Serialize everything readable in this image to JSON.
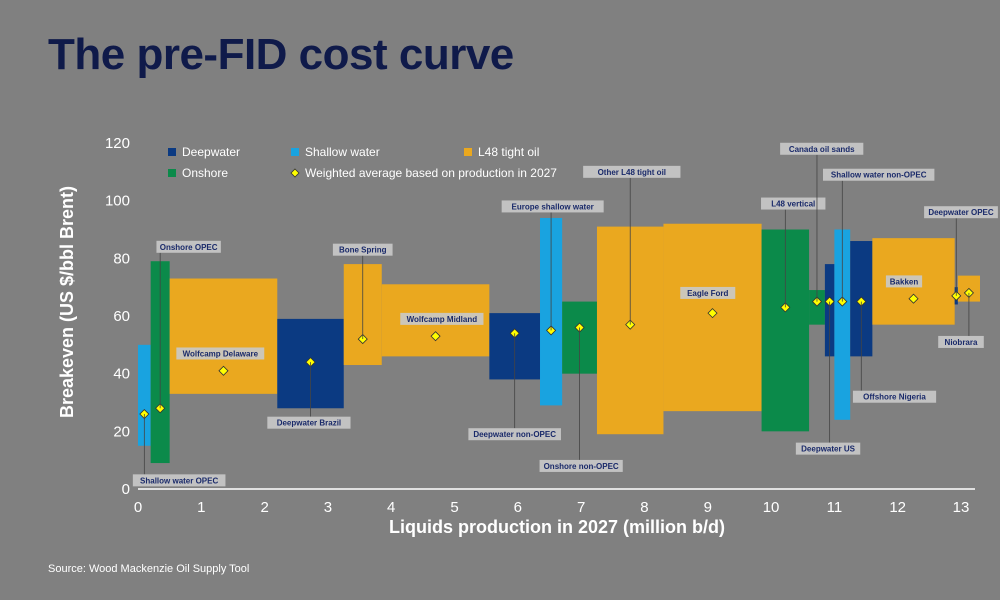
{
  "title": "The pre-FID cost curve",
  "source": "Source: Wood Mackenzie Oil Supply Tool",
  "chart_data": {
    "type": "bar",
    "subtype": "variable-width cost curve (boxes span low-high breakeven, diamonds = weighted average)",
    "xlabel": "Liquids production in 2027 (million b/d)",
    "ylabel": "Breakeven (US $/bbl Brent)",
    "xlim": [
      0,
      13.3
    ],
    "ylim": [
      0,
      120
    ],
    "xticks": [
      0,
      1,
      2,
      3,
      4,
      5,
      6,
      7,
      8,
      9,
      10,
      11,
      12,
      13
    ],
    "yticks": [
      0,
      20,
      40,
      60,
      80,
      100,
      120
    ],
    "grid": false,
    "legend_position": "top-left",
    "colors": {
      "Deepwater": "#0b3a82",
      "Shallow water": "#19a3e0",
      "L48 tight oil": "#eaa81f",
      "Onshore": "#0b8a4a",
      "average_marker": "#ffff00"
    },
    "legend": [
      {
        "label": "Deepwater",
        "type": "Deepwater"
      },
      {
        "label": "Shallow water",
        "type": "Shallow water"
      },
      {
        "label": "L48 tight oil",
        "type": "L48 tight oil"
      },
      {
        "label": "Onshore",
        "type": "Onshore"
      },
      {
        "label": "Weighted average based on production in 2027",
        "type": "average_marker"
      }
    ],
    "segments": [
      {
        "name": "Shallow water OPEC",
        "type": "Shallow water",
        "x0": 0.0,
        "x1": 0.2,
        "low": 15,
        "high": 50,
        "avg": 26
      },
      {
        "name": "Onshore OPEC",
        "type": "Onshore",
        "x0": 0.2,
        "x1": 0.5,
        "low": 9,
        "high": 79,
        "avg": 28
      },
      {
        "name": "Wolfcamp Delaware",
        "type": "L48 tight oil",
        "x0": 0.5,
        "x1": 2.2,
        "low": 33,
        "high": 73,
        "avg": 41
      },
      {
        "name": "Deepwater Brazil",
        "type": "Deepwater",
        "x0": 2.2,
        "x1": 3.25,
        "low": 28,
        "high": 59,
        "avg": 44
      },
      {
        "name": "Bone Spring",
        "type": "L48 tight oil",
        "x0": 3.25,
        "x1": 3.85,
        "low": 43,
        "high": 78,
        "avg": 52
      },
      {
        "name": "Wolfcamp Midland",
        "type": "L48 tight oil",
        "x0": 3.85,
        "x1": 5.55,
        "low": 46,
        "high": 71,
        "avg": 53
      },
      {
        "name": "Deepwater non-OPEC",
        "type": "Deepwater",
        "x0": 5.55,
        "x1": 6.35,
        "low": 38,
        "high": 61,
        "avg": 54
      },
      {
        "name": "Europe shallow water",
        "type": "Shallow water",
        "x0": 6.35,
        "x1": 6.7,
        "low": 29,
        "high": 94,
        "avg": 55
      },
      {
        "name": "Onshore non-OPEC",
        "type": "Onshore",
        "x0": 6.7,
        "x1": 7.25,
        "low": 40,
        "high": 65,
        "avg": 56
      },
      {
        "name": "Other L48 tight oil",
        "type": "L48 tight oil",
        "x0": 7.25,
        "x1": 8.3,
        "low": 19,
        "high": 91,
        "avg": 57
      },
      {
        "name": "Eagle Ford",
        "type": "L48 tight oil",
        "x0": 8.3,
        "x1": 9.85,
        "low": 27,
        "high": 92,
        "avg": 61
      },
      {
        "name": "L48 vertical",
        "type": "Onshore",
        "x0": 9.85,
        "x1": 10.6,
        "low": 20,
        "high": 90,
        "avg": 63
      },
      {
        "name": "Canada oil sands",
        "type": "Onshore",
        "x0": 10.6,
        "x1": 10.85,
        "low": 57,
        "high": 69,
        "avg": 65
      },
      {
        "name": "Deepwater US",
        "type": "Deepwater",
        "x0": 10.85,
        "x1": 11.0,
        "low": 46,
        "high": 78,
        "avg": 65
      },
      {
        "name": "Shallow water non-OPEC",
        "type": "Shallow water",
        "x0": 11.0,
        "x1": 11.25,
        "low": 24,
        "high": 90,
        "avg": 65
      },
      {
        "name": "Offshore Nigeria",
        "type": "Deepwater",
        "x0": 11.25,
        "x1": 11.6,
        "low": 46,
        "high": 86,
        "avg": 65
      },
      {
        "name": "Bakken",
        "type": "L48 tight oil",
        "x0": 11.6,
        "x1": 12.9,
        "low": 57,
        "high": 87,
        "avg": 66
      },
      {
        "name": "Deepwater OPEC",
        "type": "Deepwater",
        "x0": 12.9,
        "x1": 12.95,
        "low": 64,
        "high": 70,
        "avg": 67
      },
      {
        "name": "Niobrara",
        "type": "L48 tight oil",
        "x0": 12.95,
        "x1": 13.3,
        "low": 65,
        "high": 74,
        "avg": 68
      }
    ],
    "annotations": [
      {
        "segment": "Shallow water OPEC",
        "text": "Shallow water OPEC"
      },
      {
        "segment": "Onshore OPEC",
        "text": "Onshore OPEC"
      },
      {
        "segment": "Wolfcamp Delaware",
        "text": "Wolfcamp Delaware"
      },
      {
        "segment": "Deepwater Brazil",
        "text": "Deepwater Brazil"
      },
      {
        "segment": "Bone Spring",
        "text": "Bone Spring"
      },
      {
        "segment": "Wolfcamp Midland",
        "text": "Wolfcamp Midland"
      },
      {
        "segment": "Deepwater non-OPEC",
        "text": "Deepwater non-OPEC"
      },
      {
        "segment": "Europe shallow water",
        "text": "Europe shallow water"
      },
      {
        "segment": "Onshore non-OPEC",
        "text": "Onshore non-OPEC"
      },
      {
        "segment": "Other L48 tight oil",
        "text": "Other L48 tight oil"
      },
      {
        "segment": "Eagle Ford",
        "text": "Eagle Ford"
      },
      {
        "segment": "L48 vertical",
        "text": "L48 vertical"
      },
      {
        "segment": "Canada oil sands",
        "text": "Canada oil sands"
      },
      {
        "segment": "Deepwater US",
        "text": "Deepwater US"
      },
      {
        "segment": "Shallow water non-OPEC",
        "text": "Shallow water non-OPEC"
      },
      {
        "segment": "Offshore Nigeria",
        "text": "Offshore Nigeria"
      },
      {
        "segment": "Bakken",
        "text": "Bakken"
      },
      {
        "segment": "Deepwater OPEC",
        "text": "Deepwater OPEC"
      },
      {
        "segment": "Niobrara",
        "text": "Niobrara"
      }
    ]
  }
}
